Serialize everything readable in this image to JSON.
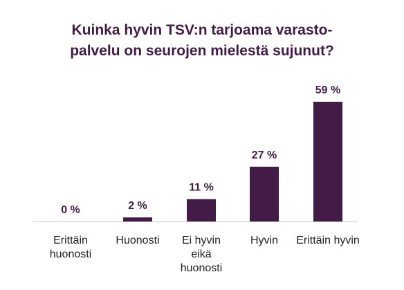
{
  "chart_data": {
    "type": "bar",
    "title_lines": [
      "Kuinka hyvin TSV:n tarjoama varasto-",
      "palvelu on seurojen mielestä sujunut?"
    ],
    "categories": [
      [
        "Erittäin",
        "huonosti"
      ],
      [
        "Huonosti"
      ],
      [
        "Ei hyvin",
        "eikä",
        "huonosti"
      ],
      [
        "Hyvin"
      ],
      [
        "Erittäin hyvin"
      ]
    ],
    "values": [
      0,
      2,
      11,
      27,
      59
    ],
    "value_labels": [
      "0 %",
      "2 %",
      "11 %",
      "27 %",
      "59 %"
    ],
    "unit": "%",
    "ylim": [
      0,
      59
    ],
    "grid": false,
    "legend": "none",
    "xlabel": "",
    "ylabel": ""
  },
  "colors": {
    "bar": "#421b47",
    "title": "#421b47",
    "text": "#222222",
    "axis": "#c8c8c8",
    "background": "#ffffff"
  }
}
